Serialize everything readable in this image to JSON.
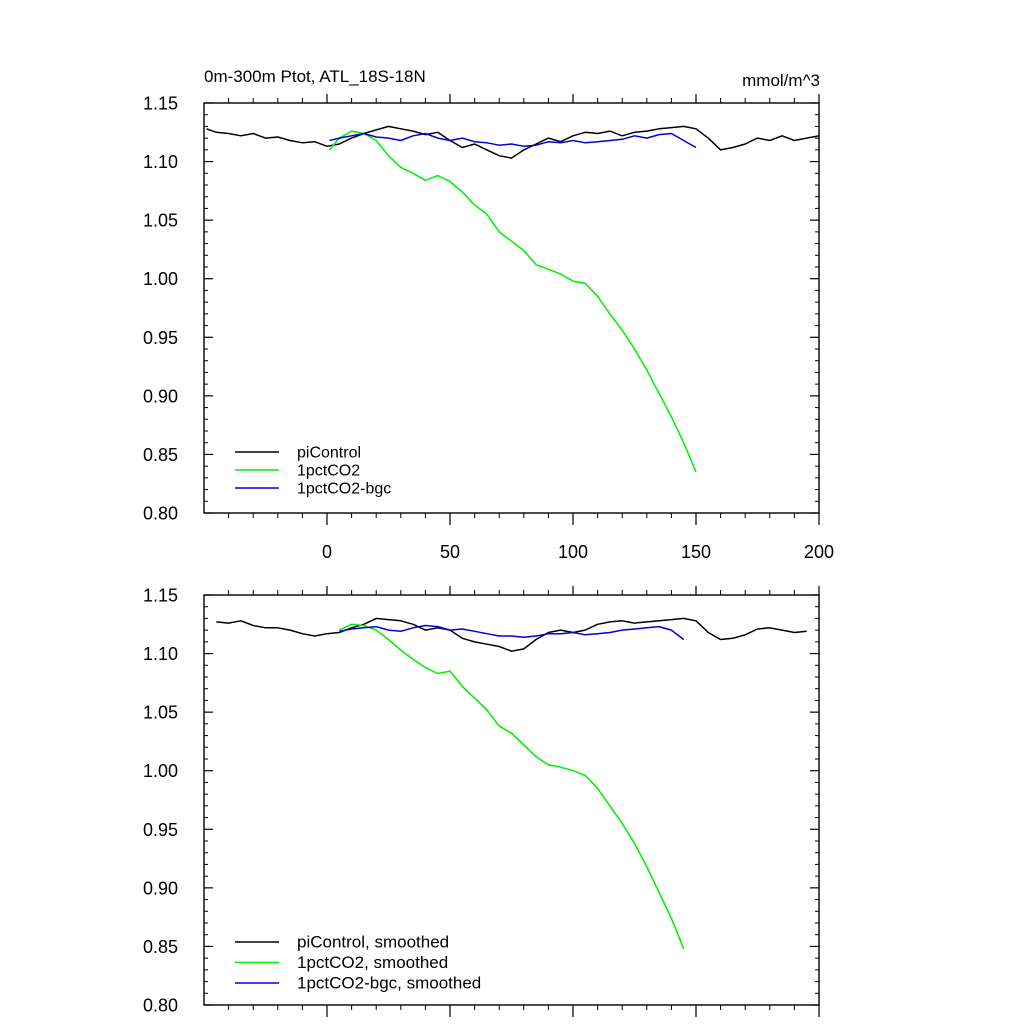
{
  "chart_data": [
    {
      "type": "line",
      "title": "0m-300m Ptot, ATL_18S-18N",
      "units": "mmol/m^3",
      "xlim": [
        -50,
        200
      ],
      "ylim": [
        0.8,
        1.15
      ],
      "xticks": [
        0,
        50,
        100,
        150,
        200
      ],
      "xtick_labels": [
        "0",
        "50",
        "100",
        "150",
        "200"
      ],
      "yticks": [
        0.8,
        0.85,
        0.9,
        0.95,
        1.0,
        1.05,
        1.1,
        1.15
      ],
      "ytick_labels": [
        "0.80",
        "0.85",
        "0.90",
        "0.95",
        "1.00",
        "1.05",
        "1.10",
        "1.15"
      ],
      "legend_position": "bottom-left",
      "series": [
        {
          "name": "piControl",
          "color": "#000000",
          "x": [
            -49,
            -45,
            -40,
            -35,
            -30,
            -25,
            -20,
            -15,
            -10,
            -5,
            0,
            5,
            10,
            15,
            20,
            25,
            30,
            35,
            40,
            45,
            50,
            55,
            60,
            65,
            70,
            75,
            80,
            85,
            90,
            95,
            100,
            105,
            110,
            115,
            120,
            125,
            130,
            135,
            140,
            145,
            150,
            155,
            160,
            165,
            170,
            175,
            180,
            185,
            190,
            195,
            200
          ],
          "y": [
            1.128,
            1.125,
            1.124,
            1.122,
            1.124,
            1.12,
            1.121,
            1.118,
            1.116,
            1.117,
            1.113,
            1.115,
            1.12,
            1.124,
            1.127,
            1.13,
            1.128,
            1.126,
            1.123,
            1.125,
            1.118,
            1.112,
            1.115,
            1.11,
            1.105,
            1.103,
            1.11,
            1.115,
            1.12,
            1.117,
            1.122,
            1.125,
            1.124,
            1.126,
            1.122,
            1.125,
            1.126,
            1.128,
            1.129,
            1.13,
            1.128,
            1.12,
            1.11,
            1.112,
            1.115,
            1.12,
            1.118,
            1.122,
            1.118,
            1.12,
            1.122
          ]
        },
        {
          "name": "1pctCO2",
          "color": "#00ee00",
          "x": [
            1,
            5,
            10,
            15,
            20,
            25,
            30,
            35,
            40,
            45,
            50,
            55,
            60,
            65,
            70,
            75,
            80,
            85,
            90,
            95,
            100,
            105,
            110,
            115,
            120,
            125,
            130,
            135,
            140,
            145,
            150
          ],
          "y": [
            1.11,
            1.12,
            1.126,
            1.124,
            1.118,
            1.105,
            1.095,
            1.09,
            1.084,
            1.088,
            1.083,
            1.074,
            1.063,
            1.055,
            1.04,
            1.032,
            1.024,
            1.012,
            1.008,
            1.004,
            0.998,
            0.996,
            0.985,
            0.97,
            0.956,
            0.94,
            0.922,
            0.902,
            0.882,
            0.86,
            0.835
          ]
        },
        {
          "name": "1pctCO2-bgc",
          "color": "#0000dd",
          "x": [
            1,
            5,
            10,
            15,
            20,
            25,
            30,
            35,
            40,
            45,
            50,
            55,
            60,
            65,
            70,
            75,
            80,
            85,
            90,
            95,
            100,
            105,
            110,
            115,
            120,
            125,
            130,
            135,
            140,
            145,
            150
          ],
          "y": [
            1.118,
            1.12,
            1.122,
            1.124,
            1.121,
            1.12,
            1.118,
            1.122,
            1.124,
            1.12,
            1.118,
            1.12,
            1.117,
            1.116,
            1.114,
            1.115,
            1.113,
            1.114,
            1.117,
            1.116,
            1.118,
            1.116,
            1.117,
            1.118,
            1.119,
            1.122,
            1.12,
            1.123,
            1.124,
            1.118,
            1.112
          ]
        }
      ]
    },
    {
      "type": "line",
      "xlim": [
        -50,
        200
      ],
      "ylim": [
        0.8,
        1.15
      ],
      "xticks": [
        0,
        50,
        100,
        150,
        200
      ],
      "yticks": [
        0.8,
        0.85,
        0.9,
        0.95,
        1.0,
        1.05,
        1.1,
        1.15
      ],
      "ytick_labels": [
        "0.80",
        "0.85",
        "0.90",
        "0.95",
        "1.00",
        "1.05",
        "1.10",
        "1.15"
      ],
      "legend_position": "bottom-left",
      "series": [
        {
          "name": "piControl, smoothed",
          "color": "#000000",
          "x": [
            -45,
            -40,
            -35,
            -30,
            -25,
            -20,
            -15,
            -10,
            -5,
            0,
            5,
            10,
            15,
            20,
            25,
            30,
            35,
            40,
            45,
            50,
            55,
            60,
            65,
            70,
            75,
            80,
            85,
            90,
            95,
            100,
            105,
            110,
            115,
            120,
            125,
            130,
            135,
            140,
            145,
            150,
            155,
            160,
            165,
            170,
            175,
            180,
            185,
            190,
            195
          ],
          "y": [
            1.127,
            1.126,
            1.128,
            1.124,
            1.122,
            1.122,
            1.12,
            1.117,
            1.115,
            1.117,
            1.118,
            1.122,
            1.125,
            1.13,
            1.129,
            1.128,
            1.125,
            1.12,
            1.122,
            1.12,
            1.113,
            1.11,
            1.108,
            1.106,
            1.102,
            1.104,
            1.112,
            1.118,
            1.12,
            1.118,
            1.12,
            1.125,
            1.127,
            1.128,
            1.126,
            1.127,
            1.128,
            1.129,
            1.13,
            1.128,
            1.118,
            1.112,
            1.113,
            1.116,
            1.121,
            1.122,
            1.12,
            1.118,
            1.119
          ]
        },
        {
          "name": "1pctCO2, smoothed",
          "color": "#00ee00",
          "x": [
            5,
            10,
            15,
            20,
            25,
            30,
            35,
            40,
            45,
            50,
            55,
            60,
            65,
            70,
            75,
            80,
            85,
            90,
            95,
            100,
            105,
            110,
            115,
            120,
            125,
            130,
            135,
            140,
            145
          ],
          "y": [
            1.12,
            1.125,
            1.124,
            1.12,
            1.112,
            1.103,
            1.095,
            1.088,
            1.083,
            1.085,
            1.072,
            1.062,
            1.052,
            1.038,
            1.032,
            1.022,
            1.012,
            1.005,
            1.003,
            1.0,
            0.996,
            0.985,
            0.97,
            0.955,
            0.938,
            0.918,
            0.896,
            0.874,
            0.848
          ]
        },
        {
          "name": "1pctCO2-bgc, smoothed",
          "color": "#0000dd",
          "x": [
            5,
            10,
            15,
            20,
            25,
            30,
            35,
            40,
            45,
            50,
            55,
            60,
            65,
            70,
            75,
            80,
            85,
            90,
            95,
            100,
            105,
            110,
            115,
            120,
            125,
            130,
            135,
            140,
            145
          ],
          "y": [
            1.119,
            1.121,
            1.122,
            1.123,
            1.12,
            1.119,
            1.122,
            1.124,
            1.123,
            1.12,
            1.121,
            1.119,
            1.117,
            1.115,
            1.115,
            1.114,
            1.115,
            1.117,
            1.117,
            1.118,
            1.116,
            1.117,
            1.118,
            1.12,
            1.121,
            1.122,
            1.123,
            1.12,
            1.112
          ]
        }
      ]
    }
  ]
}
